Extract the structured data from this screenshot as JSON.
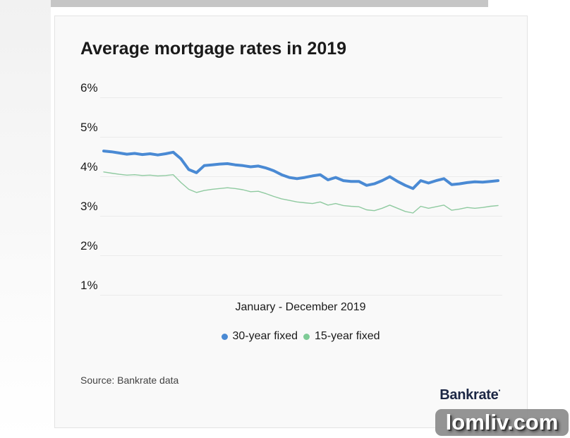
{
  "page": {
    "watermark": "lomliv.com"
  },
  "card": {
    "title": "Average mortgage rates in 2019",
    "source_label": "Source: Bankrate data",
    "brand": "Bankrate"
  },
  "chart_data": {
    "type": "line",
    "title": "Average mortgage rates in 2019",
    "xlabel": "January - December 2019",
    "ylabel": "",
    "ylim": [
      1,
      6
    ],
    "yticks": [
      "6%",
      "5%",
      "4%",
      "3%",
      "2%",
      "1%"
    ],
    "grid": "horizontal",
    "legend_position": "bottom",
    "x_description": "Weekly average rates, January through December 2019 (52 points, no x tick labels shown)",
    "series": [
      {
        "name": "30-year fixed",
        "color": "#4a8ad4",
        "stroke_width": 4,
        "values": [
          4.65,
          4.63,
          4.6,
          4.57,
          4.59,
          4.56,
          4.58,
          4.55,
          4.58,
          4.62,
          4.45,
          4.18,
          4.1,
          4.28,
          4.3,
          4.32,
          4.33,
          4.3,
          4.28,
          4.25,
          4.27,
          4.22,
          4.15,
          4.05,
          3.98,
          3.95,
          3.98,
          4.02,
          4.05,
          3.92,
          3.98,
          3.9,
          3.88,
          3.88,
          3.78,
          3.82,
          3.9,
          4.0,
          3.88,
          3.78,
          3.7,
          3.9,
          3.84,
          3.9,
          3.95,
          3.8,
          3.82,
          3.85,
          3.87,
          3.86,
          3.88,
          3.9
        ]
      },
      {
        "name": "15-year fixed",
        "color": "#8fcaa0",
        "legend_color": "#7ecb96",
        "stroke_width": 1.4,
        "values": [
          4.12,
          4.09,
          4.06,
          4.04,
          4.05,
          4.03,
          4.04,
          4.02,
          4.03,
          4.05,
          3.85,
          3.68,
          3.6,
          3.65,
          3.68,
          3.7,
          3.72,
          3.7,
          3.67,
          3.62,
          3.63,
          3.57,
          3.5,
          3.44,
          3.4,
          3.36,
          3.34,
          3.32,
          3.36,
          3.28,
          3.32,
          3.27,
          3.25,
          3.24,
          3.16,
          3.14,
          3.2,
          3.28,
          3.2,
          3.12,
          3.08,
          3.25,
          3.2,
          3.24,
          3.28,
          3.15,
          3.18,
          3.22,
          3.2,
          3.22,
          3.25,
          3.27
        ]
      }
    ]
  }
}
